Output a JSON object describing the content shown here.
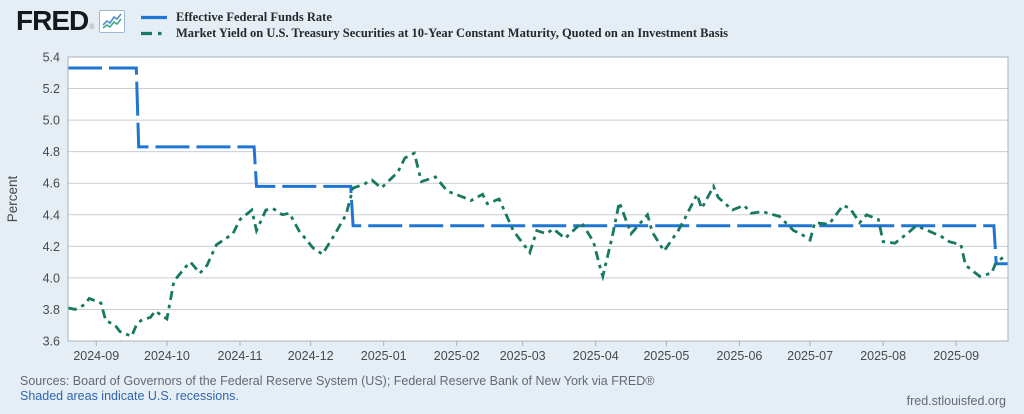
{
  "header": {
    "logo_text": "FRED",
    "logo_registered": "®",
    "legend": [
      {
        "label": "Effective Federal Funds Rate",
        "color": "#1e76d2",
        "style": "solid"
      },
      {
        "label": "Market Yield on U.S. Treasury Securities at 10-Year Constant Maturity, Quoted on an Investment Basis",
        "color": "#17795f",
        "style": "dash-dot"
      }
    ]
  },
  "footer": {
    "sources": "Sources: Board of Governors of the Federal Reserve System (US); Federal Reserve Bank of New York via FRED®",
    "recession_note": "Shaded areas indicate U.S. recessions.",
    "site_url": "fred.stlouisfed.org"
  },
  "chart_data": {
    "type": "line",
    "title": "",
    "xlabel": "",
    "ylabel": "Percent",
    "ylim": [
      3.6,
      5.4
    ],
    "ytick_step": 0.2,
    "yticks": [
      3.6,
      3.8,
      4.0,
      4.2,
      4.4,
      4.6,
      4.8,
      5.0,
      5.2,
      5.4
    ],
    "x_domain": [
      "2024-08-20",
      "2025-09-23"
    ],
    "xticks": [
      {
        "label": "2024-09",
        "date": "2024-09-01"
      },
      {
        "label": "2024-10",
        "date": "2024-10-01"
      },
      {
        "label": "2024-11",
        "date": "2024-11-01"
      },
      {
        "label": "2024-12",
        "date": "2024-12-01"
      },
      {
        "label": "2025-01",
        "date": "2025-01-01"
      },
      {
        "label": "2025-02",
        "date": "2025-02-01"
      },
      {
        "label": "2025-03",
        "date": "2025-03-01"
      },
      {
        "label": "2025-04",
        "date": "2025-04-01"
      },
      {
        "label": "2025-05",
        "date": "2025-05-01"
      },
      {
        "label": "2025-06",
        "date": "2025-06-01"
      },
      {
        "label": "2025-07",
        "date": "2025-07-01"
      },
      {
        "label": "2025-08",
        "date": "2025-08-01"
      },
      {
        "label": "2025-09",
        "date": "2025-09-01"
      }
    ],
    "grid": "horizontal",
    "legend_position": "top-left",
    "plot_bg": "#ffffff",
    "page_bg": "#e5edf5",
    "grid_color": "#c9ced3",
    "border_color": "#a8b2ba",
    "tick_text_color": "#4a4a4a",
    "series": [
      {
        "name": "Effective Federal Funds Rate",
        "color": "#1e76d2",
        "dash": "long-dash",
        "points": [
          [
            "2024-08-20",
            5.33
          ],
          [
            "2024-09-18",
            5.33
          ],
          [
            "2024-09-19",
            4.83
          ],
          [
            "2024-11-07",
            4.83
          ],
          [
            "2024-11-08",
            4.58
          ],
          [
            "2024-12-18",
            4.58
          ],
          [
            "2024-12-19",
            4.33
          ],
          [
            "2025-09-17",
            4.33
          ],
          [
            "2025-09-18",
            4.09
          ],
          [
            "2025-09-23",
            4.09
          ]
        ]
      },
      {
        "name": "Market Yield on U.S. Treasury Securities at 10-Year Constant Maturity, Quoted on an Investment Basis",
        "color": "#17795f",
        "dash": "dash-dot",
        "points": [
          [
            "2024-08-20",
            3.81
          ],
          [
            "2024-08-23",
            3.8
          ],
          [
            "2024-08-27",
            3.83
          ],
          [
            "2024-08-29",
            3.87
          ],
          [
            "2024-09-03",
            3.84
          ],
          [
            "2024-09-05",
            3.73
          ],
          [
            "2024-09-09",
            3.7
          ],
          [
            "2024-09-11",
            3.66
          ],
          [
            "2024-09-16",
            3.63
          ],
          [
            "2024-09-18",
            3.7
          ],
          [
            "2024-09-20",
            3.73
          ],
          [
            "2024-09-24",
            3.75
          ],
          [
            "2024-09-26",
            3.79
          ],
          [
            "2024-10-01",
            3.74
          ],
          [
            "2024-10-04",
            3.98
          ],
          [
            "2024-10-09",
            4.07
          ],
          [
            "2024-10-11",
            4.1
          ],
          [
            "2024-10-15",
            4.03
          ],
          [
            "2024-10-18",
            4.08
          ],
          [
            "2024-10-22",
            4.21
          ],
          [
            "2024-10-25",
            4.24
          ],
          [
            "2024-10-29",
            4.28
          ],
          [
            "2024-11-01",
            4.37
          ],
          [
            "2024-11-06",
            4.43
          ],
          [
            "2024-11-08",
            4.3
          ],
          [
            "2024-11-12",
            4.43
          ],
          [
            "2024-11-15",
            4.44
          ],
          [
            "2024-11-19",
            4.4
          ],
          [
            "2024-11-22",
            4.41
          ],
          [
            "2024-11-26",
            4.3
          ],
          [
            "2024-12-02",
            4.19
          ],
          [
            "2024-12-06",
            4.15
          ],
          [
            "2024-12-11",
            4.27
          ],
          [
            "2024-12-16",
            4.4
          ],
          [
            "2024-12-19",
            4.57
          ],
          [
            "2024-12-23",
            4.59
          ],
          [
            "2024-12-27",
            4.62
          ],
          [
            "2024-12-31",
            4.57
          ],
          [
            "2025-01-07",
            4.67
          ],
          [
            "2025-01-10",
            4.76
          ],
          [
            "2025-01-14",
            4.79
          ],
          [
            "2025-01-17",
            4.61
          ],
          [
            "2025-01-23",
            4.64
          ],
          [
            "2025-01-28",
            4.55
          ],
          [
            "2025-02-04",
            4.51
          ],
          [
            "2025-02-07",
            4.49
          ],
          [
            "2025-02-12",
            4.53
          ],
          [
            "2025-02-14",
            4.47
          ],
          [
            "2025-02-19",
            4.5
          ],
          [
            "2025-02-25",
            4.3
          ],
          [
            "2025-02-28",
            4.24
          ],
          [
            "2025-03-04",
            4.16
          ],
          [
            "2025-03-07",
            4.3
          ],
          [
            "2025-03-11",
            4.28
          ],
          [
            "2025-03-14",
            4.31
          ],
          [
            "2025-03-19",
            4.25
          ],
          [
            "2025-03-26",
            4.35
          ],
          [
            "2025-03-31",
            4.23
          ],
          [
            "2025-04-03",
            4.06
          ],
          [
            "2025-04-04",
            4.01
          ],
          [
            "2025-04-08",
            4.26
          ],
          [
            "2025-04-11",
            4.48
          ],
          [
            "2025-04-16",
            4.28
          ],
          [
            "2025-04-23",
            4.4
          ],
          [
            "2025-04-25",
            4.29
          ],
          [
            "2025-04-30",
            4.17
          ],
          [
            "2025-05-06",
            4.3
          ],
          [
            "2025-05-09",
            4.38
          ],
          [
            "2025-05-14",
            4.53
          ],
          [
            "2025-05-16",
            4.44
          ],
          [
            "2025-05-21",
            4.58
          ],
          [
            "2025-05-23",
            4.51
          ],
          [
            "2025-05-29",
            4.43
          ],
          [
            "2025-06-03",
            4.46
          ],
          [
            "2025-06-06",
            4.41
          ],
          [
            "2025-06-11",
            4.42
          ],
          [
            "2025-06-13",
            4.41
          ],
          [
            "2025-06-18",
            4.39
          ],
          [
            "2025-06-24",
            4.3
          ],
          [
            "2025-06-27",
            4.28
          ],
          [
            "2025-07-01",
            4.24
          ],
          [
            "2025-07-03",
            4.35
          ],
          [
            "2025-07-09",
            4.34
          ],
          [
            "2025-07-15",
            4.46
          ],
          [
            "2025-07-18",
            4.44
          ],
          [
            "2025-07-22",
            4.35
          ],
          [
            "2025-07-25",
            4.4
          ],
          [
            "2025-07-30",
            4.37
          ],
          [
            "2025-08-01",
            4.23
          ],
          [
            "2025-08-06",
            4.22
          ],
          [
            "2025-08-12",
            4.29
          ],
          [
            "2025-08-15",
            4.33
          ],
          [
            "2025-08-20",
            4.3
          ],
          [
            "2025-08-26",
            4.26
          ],
          [
            "2025-08-29",
            4.23
          ],
          [
            "2025-09-03",
            4.21
          ],
          [
            "2025-09-05",
            4.08
          ],
          [
            "2025-09-11",
            4.01
          ],
          [
            "2025-09-16",
            4.03
          ],
          [
            "2025-09-18",
            4.1
          ],
          [
            "2025-09-22",
            4.14
          ]
        ]
      }
    ]
  }
}
